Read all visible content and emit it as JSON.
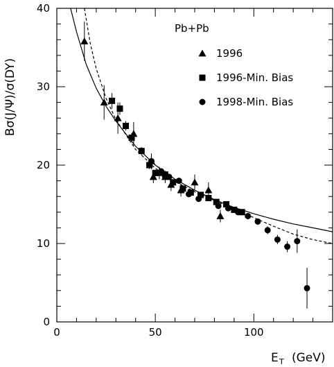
{
  "chart_data": {
    "type": "scatter",
    "title": "",
    "annotation": "Pb+Pb",
    "xlabel_main": "E",
    "xlabel_sub": "T",
    "xlabel_unit": "(GeV)",
    "ylabel": "Bσ(J/Ψ)/σ(DY)",
    "xlim": [
      0,
      140
    ],
    "ylim": [
      0,
      40
    ],
    "x_ticks": [
      0,
      50,
      100
    ],
    "y_ticks": [
      0,
      10,
      20,
      30,
      40
    ],
    "legend_position": "top-right",
    "series": [
      {
        "name": "1996",
        "marker": "triangle",
        "points": [
          {
            "x": 14,
            "y": 35.8,
            "err": 2.5
          },
          {
            "x": 24,
            "y": 28.0,
            "err": 2.2
          },
          {
            "x": 31,
            "y": 26.0,
            "err": 2.0
          },
          {
            "x": 39,
            "y": 24.0,
            "err": 1.5
          },
          {
            "x": 48,
            "y": 20.5,
            "err": 1.0
          },
          {
            "x": 49,
            "y": 18.5,
            "err": 0.8
          },
          {
            "x": 52,
            "y": 19.0,
            "err": 0.8
          },
          {
            "x": 55,
            "y": 18.5,
            "err": 0.8
          },
          {
            "x": 58,
            "y": 17.5,
            "err": 0.8
          },
          {
            "x": 63,
            "y": 16.8,
            "err": 0.8
          },
          {
            "x": 70,
            "y": 17.8,
            "err": 1.0
          },
          {
            "x": 77,
            "y": 16.8,
            "err": 1.0
          },
          {
            "x": 83,
            "y": 13.5,
            "err": 0.8
          }
        ]
      },
      {
        "name": "1996-Min. Bias",
        "marker": "square",
        "points": [
          {
            "x": 28,
            "y": 28.2,
            "err": 1.0
          },
          {
            "x": 32,
            "y": 27.2,
            "err": 0.8
          },
          {
            "x": 35,
            "y": 25.0,
            "err": 0.6
          },
          {
            "x": 38,
            "y": 23.5,
            "err": 0.6
          },
          {
            "x": 43,
            "y": 21.8,
            "err": 0.5
          },
          {
            "x": 47,
            "y": 20.0,
            "err": 0.5
          },
          {
            "x": 50,
            "y": 19.0,
            "err": 0.4
          },
          {
            "x": 55,
            "y": 18.8,
            "err": 0.4
          },
          {
            "x": 59,
            "y": 17.8,
            "err": 0.4
          },
          {
            "x": 64,
            "y": 17.0,
            "err": 0.4
          },
          {
            "x": 68,
            "y": 16.5,
            "err": 0.4
          },
          {
            "x": 73,
            "y": 16.2,
            "err": 0.4
          },
          {
            "x": 77,
            "y": 15.8,
            "err": 0.4
          },
          {
            "x": 81,
            "y": 15.3,
            "err": 0.4
          },
          {
            "x": 86,
            "y": 15.0,
            "err": 0.4
          },
          {
            "x": 90,
            "y": 14.3,
            "err": 0.4
          },
          {
            "x": 94,
            "y": 14.0,
            "err": 0.4
          }
        ]
      },
      {
        "name": "1998-Min. Bias",
        "marker": "circle",
        "points": [
          {
            "x": 48,
            "y": 20.5,
            "err": 0.5
          },
          {
            "x": 53,
            "y": 19.2,
            "err": 0.4
          },
          {
            "x": 57,
            "y": 18.5,
            "err": 0.4
          },
          {
            "x": 62,
            "y": 18.0,
            "err": 0.4
          },
          {
            "x": 67,
            "y": 16.3,
            "err": 0.4
          },
          {
            "x": 72,
            "y": 15.7,
            "err": 0.4
          },
          {
            "x": 77,
            "y": 15.8,
            "err": 0.4
          },
          {
            "x": 82,
            "y": 14.8,
            "err": 0.4
          },
          {
            "x": 87,
            "y": 14.5,
            "err": 0.4
          },
          {
            "x": 92,
            "y": 14.0,
            "err": 0.4
          },
          {
            "x": 97,
            "y": 13.5,
            "err": 0.4
          },
          {
            "x": 102,
            "y": 12.8,
            "err": 0.4
          },
          {
            "x": 107,
            "y": 11.7,
            "err": 0.5
          },
          {
            "x": 112,
            "y": 10.5,
            "err": 0.6
          },
          {
            "x": 117,
            "y": 9.6,
            "err": 0.7
          },
          {
            "x": 122,
            "y": 10.3,
            "err": 1.5
          },
          {
            "x": 127,
            "y": 4.3,
            "err": 2.6
          }
        ]
      }
    ],
    "curves": [
      {
        "style": "solid",
        "x": [
          7,
          10,
          15,
          20,
          25,
          30,
          40,
          50,
          60,
          70,
          80,
          90,
          100,
          110,
          120,
          130,
          140
        ],
        "y": [
          40.0,
          37.0,
          32.8,
          29.8,
          27.5,
          25.6,
          22.4,
          20.0,
          18.2,
          16.8,
          15.6,
          14.6,
          13.8,
          13.1,
          12.5,
          12.0,
          11.5
        ]
      },
      {
        "style": "dashed",
        "x": [
          14,
          17,
          20,
          25,
          30,
          40,
          50,
          60,
          70,
          80,
          90,
          100,
          110,
          120,
          130,
          140
        ],
        "y": [
          40.0,
          35.5,
          32.3,
          28.5,
          25.8,
          22.0,
          19.6,
          17.9,
          16.6,
          15.5,
          14.4,
          13.3,
          12.2,
          11.2,
          10.5,
          10.0
        ]
      }
    ]
  }
}
